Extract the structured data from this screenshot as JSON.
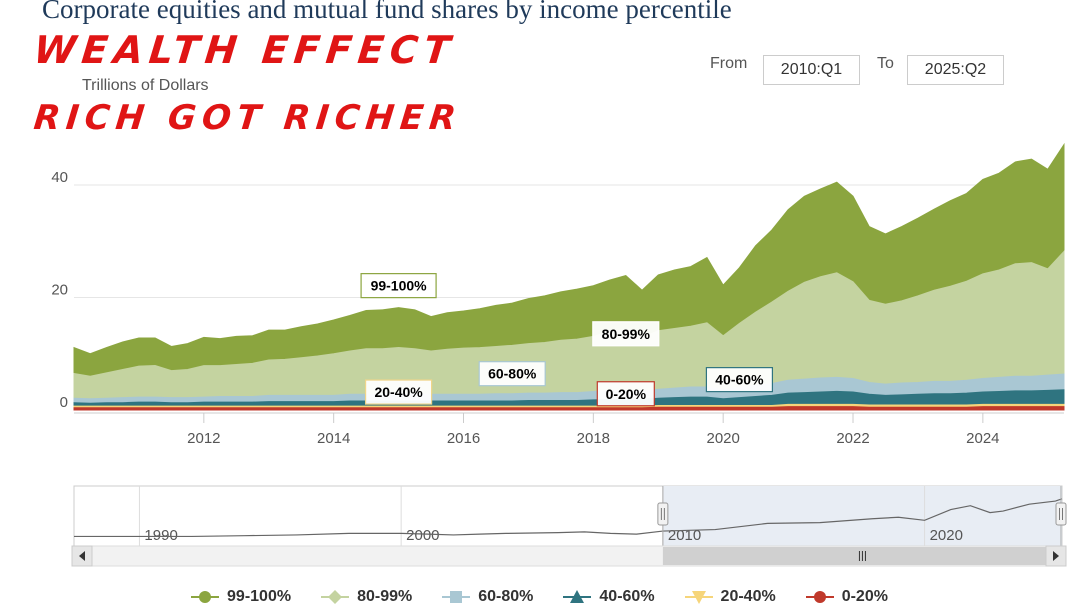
{
  "title": "Corporate equities and mutual fund shares by income percentile",
  "annotations": {
    "line1": "WEALTH EFFECT",
    "line2": "RICH GOT RICHER"
  },
  "range": {
    "from_label": "From",
    "from_value": "2010:Q1",
    "to_label": "To",
    "to_value": "2025:Q2"
  },
  "colors": {
    "p99_100": "#8ba53f",
    "p80_99": "#c4d3a0",
    "p60_80": "#a9c7d3",
    "p40_60": "#2f7480",
    "p20_40": "#f6d57a",
    "p0_20": "#c0392b"
  },
  "chart_data": {
    "type": "area",
    "stacked": true,
    "ylabel": "Trillions of Dollars",
    "ylim": [
      0,
      50
    ],
    "yticks": [
      0,
      20,
      40
    ],
    "xticks": [
      "2012",
      "2014",
      "2016",
      "2018",
      "2020",
      "2022",
      "2024"
    ],
    "x": [
      2010.0,
      2010.25,
      2010.5,
      2010.75,
      2011.0,
      2011.25,
      2011.5,
      2011.75,
      2012.0,
      2012.25,
      2012.5,
      2012.75,
      2013.0,
      2013.25,
      2013.5,
      2013.75,
      2014.0,
      2014.25,
      2014.5,
      2014.75,
      2015.0,
      2015.25,
      2015.5,
      2015.75,
      2016.0,
      2016.25,
      2016.5,
      2016.75,
      2017.0,
      2017.25,
      2017.5,
      2017.75,
      2018.0,
      2018.25,
      2018.5,
      2018.75,
      2019.0,
      2019.25,
      2019.5,
      2019.75,
      2020.0,
      2020.25,
      2020.5,
      2020.75,
      2021.0,
      2021.25,
      2021.5,
      2021.75,
      2022.0,
      2022.25,
      2022.5,
      2022.75,
      2023.0,
      2023.25,
      2023.5,
      2023.75,
      2024.0,
      2024.25,
      2024.5,
      2024.75,
      2025.0,
      2025.25
    ],
    "series": [
      {
        "name": "0-20%",
        "values": [
          0.4,
          0.4,
          0.4,
          0.4,
          0.4,
          0.4,
          0.4,
          0.4,
          0.4,
          0.4,
          0.4,
          0.4,
          0.4,
          0.4,
          0.4,
          0.4,
          0.4,
          0.4,
          0.4,
          0.4,
          0.4,
          0.4,
          0.4,
          0.4,
          0.4,
          0.4,
          0.4,
          0.4,
          0.4,
          0.4,
          0.4,
          0.4,
          0.4,
          0.4,
          0.4,
          0.4,
          0.5,
          0.5,
          0.5,
          0.5,
          0.5,
          0.5,
          0.5,
          0.5,
          0.6,
          0.6,
          0.6,
          0.6,
          0.6,
          0.5,
          0.5,
          0.5,
          0.5,
          0.5,
          0.5,
          0.5,
          0.6,
          0.6,
          0.6,
          0.6,
          0.6,
          0.6
        ]
      },
      {
        "name": "20-40%",
        "values": [
          0.3,
          0.3,
          0.3,
          0.3,
          0.3,
          0.3,
          0.3,
          0.3,
          0.3,
          0.3,
          0.3,
          0.3,
          0.3,
          0.3,
          0.3,
          0.3,
          0.3,
          0.3,
          0.3,
          0.3,
          0.3,
          0.3,
          0.3,
          0.3,
          0.3,
          0.3,
          0.3,
          0.3,
          0.3,
          0.3,
          0.3,
          0.3,
          0.3,
          0.3,
          0.3,
          0.3,
          0.3,
          0.3,
          0.3,
          0.3,
          0.3,
          0.3,
          0.3,
          0.3,
          0.4,
          0.4,
          0.4,
          0.4,
          0.4,
          0.4,
          0.4,
          0.4,
          0.4,
          0.4,
          0.4,
          0.4,
          0.4,
          0.4,
          0.4,
          0.4,
          0.4,
          0.4
        ]
      },
      {
        "name": "40-60%",
        "values": [
          0.6,
          0.5,
          0.6,
          0.6,
          0.7,
          0.7,
          0.6,
          0.6,
          0.7,
          0.7,
          0.7,
          0.7,
          0.8,
          0.8,
          0.8,
          0.8,
          0.8,
          0.9,
          0.9,
          0.9,
          0.9,
          0.9,
          0.9,
          0.9,
          0.9,
          0.9,
          0.9,
          0.9,
          1.0,
          1.0,
          1.0,
          1.0,
          1.1,
          1.2,
          1.2,
          1.2,
          1.3,
          1.4,
          1.5,
          1.5,
          1.2,
          1.4,
          1.6,
          1.8,
          2.0,
          2.1,
          2.2,
          2.3,
          2.2,
          1.9,
          1.7,
          1.8,
          1.9,
          2.0,
          2.0,
          2.1,
          2.2,
          2.3,
          2.4,
          2.4,
          2.5,
          2.6
        ]
      },
      {
        "name": "60-80%",
        "values": [
          0.8,
          0.8,
          0.8,
          0.9,
          0.9,
          0.9,
          0.9,
          0.9,
          0.9,
          1.0,
          1.0,
          1.0,
          1.1,
          1.1,
          1.1,
          1.1,
          1.1,
          1.2,
          1.2,
          1.2,
          1.2,
          1.2,
          1.2,
          1.2,
          1.2,
          1.2,
          1.3,
          1.3,
          1.3,
          1.3,
          1.4,
          1.4,
          1.5,
          1.6,
          1.6,
          1.5,
          1.6,
          1.7,
          1.8,
          1.8,
          1.6,
          1.8,
          2.0,
          2.1,
          2.3,
          2.4,
          2.5,
          2.5,
          2.4,
          2.1,
          2.0,
          2.1,
          2.1,
          2.2,
          2.2,
          2.3,
          2.4,
          2.5,
          2.6,
          2.6,
          2.7,
          2.8
        ]
      },
      {
        "name": "80-99%",
        "values": [
          4.4,
          4.0,
          4.5,
          5.0,
          5.5,
          5.6,
          4.8,
          5.0,
          5.6,
          5.5,
          5.7,
          5.9,
          6.3,
          6.4,
          6.7,
          7.0,
          7.4,
          7.7,
          8.1,
          8.1,
          8.3,
          8.1,
          7.7,
          8.0,
          8.2,
          8.3,
          8.4,
          8.6,
          8.8,
          9.0,
          9.3,
          9.5,
          9.8,
          10.4,
          10.8,
          9.5,
          10.4,
          10.6,
          10.8,
          11.4,
          9.6,
          11.4,
          13.0,
          14.5,
          15.8,
          17.2,
          18.0,
          18.6,
          17.2,
          14.6,
          14.2,
          14.6,
          15.4,
          16.2,
          16.9,
          17.6,
          18.6,
          19.1,
          20.0,
          20.2,
          18.9,
          21.8
        ]
      },
      {
        "name": "99-100%",
        "values": [
          4.6,
          4.0,
          4.5,
          4.9,
          5.0,
          4.9,
          4.3,
          4.6,
          5.0,
          4.8,
          5.0,
          4.9,
          5.3,
          5.2,
          5.5,
          5.7,
          6.0,
          6.3,
          6.8,
          6.9,
          7.1,
          6.9,
          6.1,
          6.5,
          6.6,
          6.9,
          7.3,
          7.5,
          8.0,
          8.3,
          8.6,
          8.9,
          9.0,
          9.2,
          9.6,
          8.4,
          9.9,
          10.4,
          10.6,
          11.6,
          9.0,
          9.9,
          11.8,
          12.8,
          14.5,
          15.3,
          15.6,
          16.1,
          15.2,
          13.1,
          12.5,
          13.2,
          13.8,
          14.4,
          15.2,
          15.6,
          16.8,
          17.2,
          18.1,
          18.4,
          17.7,
          19.0
        ]
      }
    ],
    "labels": [
      {
        "text": "99-100%",
        "series": "99-100%",
        "x": 2015.0
      },
      {
        "text": "80-99%",
        "series": "80-99%",
        "x": 2018.5
      },
      {
        "text": "60-80%",
        "series": "60-80%",
        "x": 2016.75
      },
      {
        "text": "40-60%",
        "series": "40-60%",
        "x": 2020.25
      },
      {
        "text": "20-40%",
        "series": "20-40%",
        "x": 2015.0
      },
      {
        "text": "0-20%",
        "series": "0-20%",
        "x": 2018.5
      }
    ],
    "navigator": {
      "xticks": [
        "1990",
        "2000",
        "2010",
        "2020"
      ],
      "xlim": [
        1987.5,
        2025.25
      ],
      "selected": [
        2010.0,
        2025.25
      ],
      "trace": [
        [
          1987.5,
          2
        ],
        [
          1990,
          2
        ],
        [
          1992,
          2
        ],
        [
          1994,
          3
        ],
        [
          1996,
          4
        ],
        [
          1998,
          6
        ],
        [
          2000,
          6
        ],
        [
          2001,
          5
        ],
        [
          2002,
          4
        ],
        [
          2003,
          5
        ],
        [
          2004,
          6
        ],
        [
          2006,
          7
        ],
        [
          2007,
          8
        ],
        [
          2008,
          6
        ],
        [
          2009,
          5
        ],
        [
          2010,
          9
        ],
        [
          2012,
          11
        ],
        [
          2014,
          19
        ],
        [
          2016,
          20
        ],
        [
          2018,
          25
        ],
        [
          2019,
          27
        ],
        [
          2020,
          23
        ],
        [
          2021,
          37
        ],
        [
          2021.75,
          42
        ],
        [
          2022.5,
          33
        ],
        [
          2023,
          35
        ],
        [
          2024,
          44
        ],
        [
          2025,
          48
        ],
        [
          2025.25,
          51
        ]
      ]
    },
    "legend": [
      {
        "name": "99-100%",
        "symbol": "circle"
      },
      {
        "name": "80-99%",
        "symbol": "diamond"
      },
      {
        "name": "60-80%",
        "symbol": "square"
      },
      {
        "name": "40-60%",
        "symbol": "triangle"
      },
      {
        "name": "20-40%",
        "symbol": "triangle-down"
      },
      {
        "name": "0-20%",
        "symbol": "circle"
      }
    ]
  }
}
